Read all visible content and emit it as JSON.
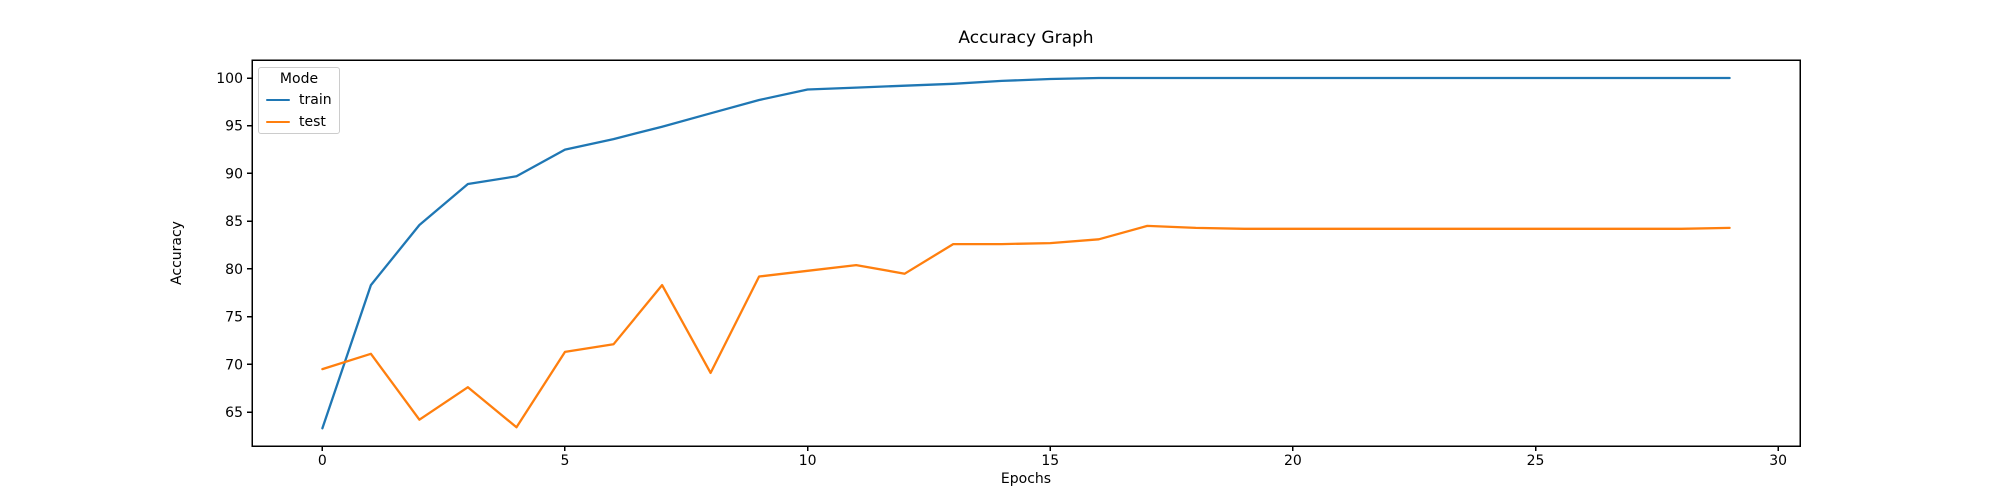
{
  "chart_data": {
    "type": "line",
    "title": "Accuracy Graph",
    "xlabel": "Epochs",
    "ylabel": "Accuracy",
    "legend": {
      "title": "Mode",
      "position": "upper left"
    },
    "x": [
      0,
      1,
      2,
      3,
      4,
      5,
      6,
      7,
      8,
      9,
      10,
      11,
      12,
      13,
      14,
      15,
      16,
      17,
      18,
      19,
      20,
      21,
      22,
      23,
      24,
      25,
      26,
      27,
      28,
      29
    ],
    "series": [
      {
        "name": "train",
        "color": "#1f77b4",
        "values": [
          63.3,
          78.3,
          84.6,
          88.9,
          89.7,
          92.5,
          93.6,
          94.9,
          96.3,
          97.7,
          98.8,
          99.0,
          99.2,
          99.4,
          99.7,
          99.9,
          100.0,
          100.0,
          100.0,
          100.0,
          100.0,
          100.0,
          100.0,
          100.0,
          100.0,
          100.0,
          100.0,
          100.0,
          100.0,
          100.0
        ]
      },
      {
        "name": "test",
        "color": "#ff7f0e",
        "values": [
          69.5,
          71.1,
          64.2,
          67.6,
          63.4,
          71.3,
          72.1,
          78.3,
          69.1,
          79.2,
          79.8,
          80.4,
          79.5,
          82.6,
          82.6,
          82.7,
          83.1,
          84.5,
          84.3,
          84.2,
          84.2,
          84.2,
          84.2,
          84.2,
          84.2,
          84.2,
          84.2,
          84.2,
          84.2,
          84.3
        ]
      }
    ],
    "xlim": [
      -1.45,
      30.45
    ],
    "ylim": [
      61.44,
      101.89
    ],
    "xticks": [
      0,
      5,
      10,
      15,
      20,
      25,
      30
    ],
    "yticks": [
      65,
      70,
      75,
      80,
      85,
      90,
      95,
      100
    ],
    "grid": false,
    "spine_color": "#000000",
    "background": "#ffffff"
  }
}
